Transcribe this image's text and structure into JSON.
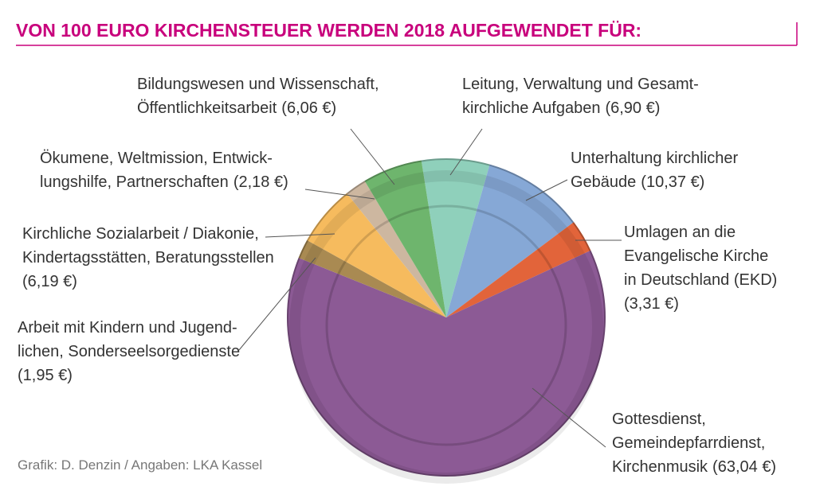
{
  "chart_data": {
    "type": "pie",
    "title": "VON 100 EURO KIRCHENSTEUER WERDEN 2018 AUFGEWENDET FÜR:",
    "source": "Grafik: D. Denzin / Angaben: LKA Kassel",
    "categories": [
      [
        "Leitung, Verwaltung und Gesamt-",
        "kirchliche Aufgaben"
      ],
      [
        "Unterhaltung kirchlicher",
        "Gebäude"
      ],
      [
        "Umlagen an die",
        "Evangelische Kirche",
        "in Deutschland (EKD)"
      ],
      [
        "Gottesdienst,",
        "Gemeindepfarrdienst,",
        "Kirchenmusik"
      ],
      [
        "Arbeit mit Kindern und Jugend-",
        "lichen, Sonderseelsorgedienste"
      ],
      [
        "Kirchliche Sozialarbeit / Diakonie,",
        "Kindertagsstätten, Beratungsstellen"
      ],
      [
        "Ökumene, Weltmission, Entwick-",
        "lungshilfe, Partnerschaften"
      ],
      [
        "Bildungswesen und Wissenschaft,",
        "Öffentlichkeitsarbeit"
      ]
    ],
    "values": [
      6.9,
      10.37,
      3.31,
      63.04,
      1.95,
      6.19,
      2.18,
      6.06
    ],
    "value_labels": [
      "(6,90 €)",
      "(10,37 €)",
      "(3,31 €)",
      "(63,04 €)",
      "(1,95 €)",
      "(6,19 €)",
      "(2,18 €)",
      "(6,06 €)"
    ],
    "colors": [
      "#8fd0bb",
      "#86a8d6",
      "#e2643a",
      "#8c5a95",
      "#a98a52",
      "#f6bb5e",
      "#cdb7a0",
      "#6eb56d"
    ]
  }
}
